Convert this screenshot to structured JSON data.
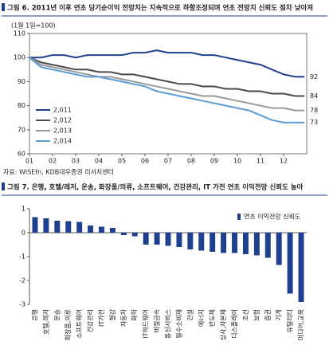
{
  "chart_data": [
    {
      "type": "line",
      "title": "그림 6. 2011년 이후 연초 당기순이익 전망치는 지속적으로 하향조정되며 연초 전망치 신뢰도 점차 낮아져",
      "ylabel": "(1월 1일=100)",
      "source": "자료: WISEfn, KDB대우증권 리서치센터",
      "x": [
        1,
        1.5,
        2,
        2.5,
        3,
        3.5,
        4,
        4.5,
        5,
        5.5,
        6,
        6.5,
        7,
        7.5,
        8,
        8.5,
        9,
        9.5,
        10,
        10.5,
        11,
        11.5,
        12,
        12.5,
        12.9
      ],
      "xlim": [
        1,
        13
      ],
      "xticks": [
        {
          "value": 1,
          "label": "01"
        },
        {
          "value": 2,
          "label": "02"
        },
        {
          "value": 3,
          "label": "03"
        },
        {
          "value": 4,
          "label": "04"
        },
        {
          "value": 5,
          "label": "05"
        },
        {
          "value": 6,
          "label": "06"
        },
        {
          "value": 7,
          "label": "07"
        },
        {
          "value": 8,
          "label": "08"
        },
        {
          "value": 9,
          "label": "09"
        },
        {
          "value": 10,
          "label": "10"
        },
        {
          "value": 11,
          "label": "11"
        },
        {
          "value": 12,
          "label": "12"
        }
      ],
      "ylim": [
        60,
        110
      ],
      "yticks": [
        60,
        70,
        80,
        90,
        100,
        110
      ],
      "legend": "lower left",
      "series": [
        {
          "name": "2,011",
          "color": "#1f3f8f",
          "end_label": "92",
          "values": [
            100,
            100,
            101,
            101,
            100,
            101,
            101,
            101,
            101,
            102,
            102,
            103,
            102,
            102,
            102,
            101,
            101,
            100,
            99,
            98,
            97,
            95,
            93,
            92,
            92
          ]
        },
        {
          "name": "2,012",
          "color": "#4a4a4a",
          "end_label": "84",
          "values": [
            100,
            98,
            97,
            96,
            95,
            95,
            94,
            94,
            93,
            93,
            92,
            91,
            90,
            89,
            89,
            88,
            88,
            87,
            87,
            86,
            86,
            85,
            85,
            84,
            84
          ]
        },
        {
          "name": "2,013",
          "color": "#9a9a9a",
          "end_label": "78",
          "values": [
            100,
            97,
            96,
            95,
            94,
            93,
            92,
            92,
            91,
            90,
            89,
            88,
            87,
            86,
            85,
            84,
            84,
            83,
            82,
            81,
            80,
            79,
            79,
            78,
            78
          ]
        },
        {
          "name": "2,014",
          "color": "#5b9bd5",
          "end_label": "73",
          "values": [
            100,
            96,
            95,
            94,
            93,
            92,
            92,
            91,
            90,
            89,
            88,
            86,
            85,
            84,
            83,
            82,
            81,
            80,
            79,
            78,
            76,
            74,
            73,
            73,
            73
          ]
        }
      ]
    },
    {
      "type": "bar",
      "title": "그림 7. 은행, 호텔/레저, 운송, 화장품/의류, 소프트웨어, 건강관리, IT 가전 연초 이익전망 신뢰도 높아",
      "legend": "upper right",
      "series": [
        {
          "name": "연초 이익전망 신뢰도",
          "color": "#1f3f8f",
          "values": [
            0.65,
            0.6,
            0.5,
            0.48,
            0.45,
            0.3,
            0.25,
            0.2,
            -0.1,
            -0.15,
            -0.5,
            -0.5,
            -0.55,
            -0.6,
            -0.7,
            -0.75,
            -0.8,
            -0.85,
            -0.85,
            -0.9,
            -0.95,
            -1.05,
            -1.35,
            -2.55,
            -2.9
          ]
        }
      ],
      "categories": [
        "은행",
        "호텔,레저",
        "운송",
        "화장품,의류",
        "소프트웨어",
        "건강관리",
        "IT가전",
        "철강",
        "자동차",
        "화학",
        "IT하드웨어",
        "비철금속",
        "통신서비스",
        "필수소비재",
        "건설",
        "에너지",
        "반도체",
        "상사,자본재",
        "디스플레이",
        "조선",
        "보험",
        "증권",
        "기계",
        "유틸리티",
        "미디어,교육"
      ],
      "ylim": [
        -3,
        1
      ],
      "yticks": [
        -3,
        -2,
        -1,
        0,
        1
      ]
    }
  ]
}
